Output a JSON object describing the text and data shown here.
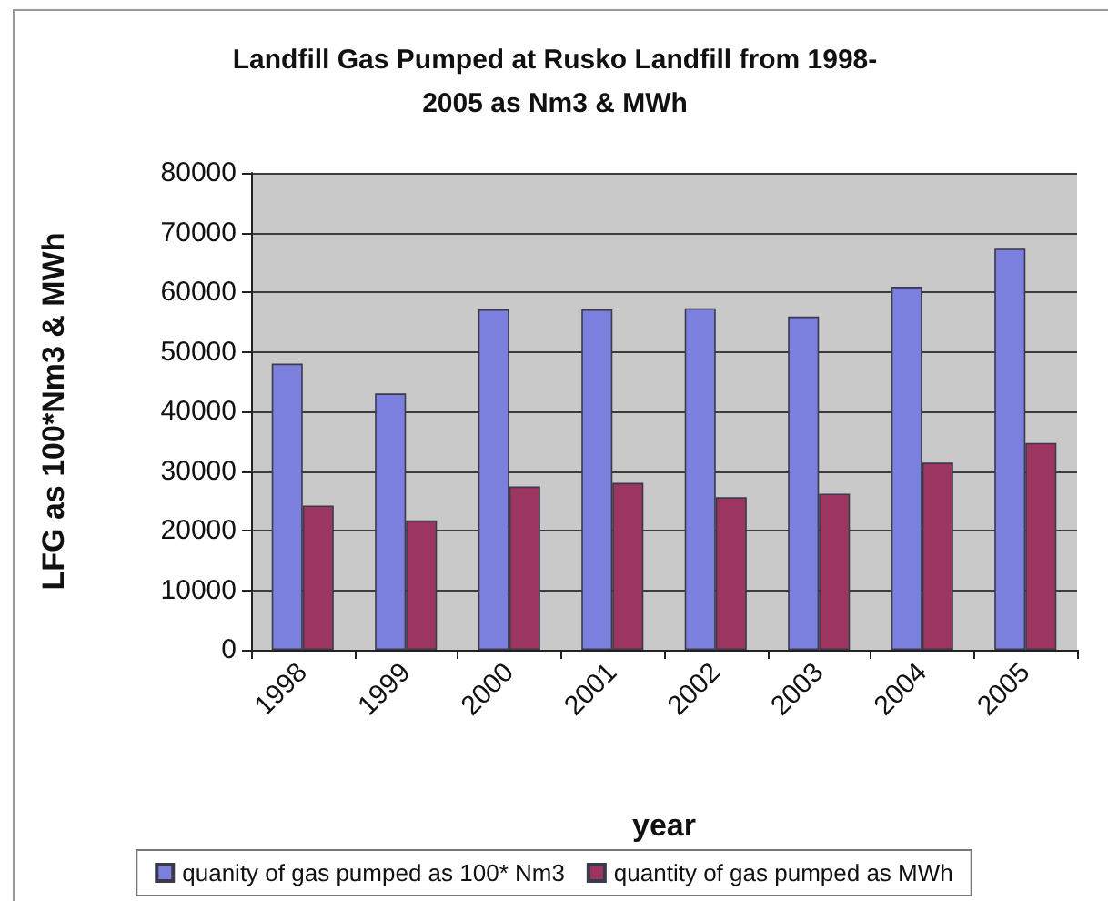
{
  "chart_data": {
    "type": "bar",
    "title": "Landfill Gas Pumped at Rusko Landfill from 1998-2005 as Nm3 & MWh",
    "xlabel": "year",
    "ylabel": "LFG as 100*Nm3 & MWh",
    "categories": [
      "1998",
      "1999",
      "2000",
      "2001",
      "2002",
      "2003",
      "2004",
      "2005"
    ],
    "series": [
      {
        "name": "quanity of gas pumped as 100* Nm3",
        "color": "#7b7fdd",
        "values": [
          48000,
          43000,
          57100,
          57100,
          57300,
          55900,
          60900,
          67300
        ]
      },
      {
        "name": "quantity of gas pumped as MWh",
        "color": "#9c3560",
        "values": [
          24200,
          21700,
          27400,
          28000,
          25600,
          26200,
          31400,
          34700
        ]
      }
    ],
    "ylim": [
      0,
      80000
    ],
    "yticks": [
      0,
      10000,
      20000,
      30000,
      40000,
      50000,
      60000,
      70000,
      80000
    ],
    "grid": "y",
    "legend": "bottom"
  }
}
